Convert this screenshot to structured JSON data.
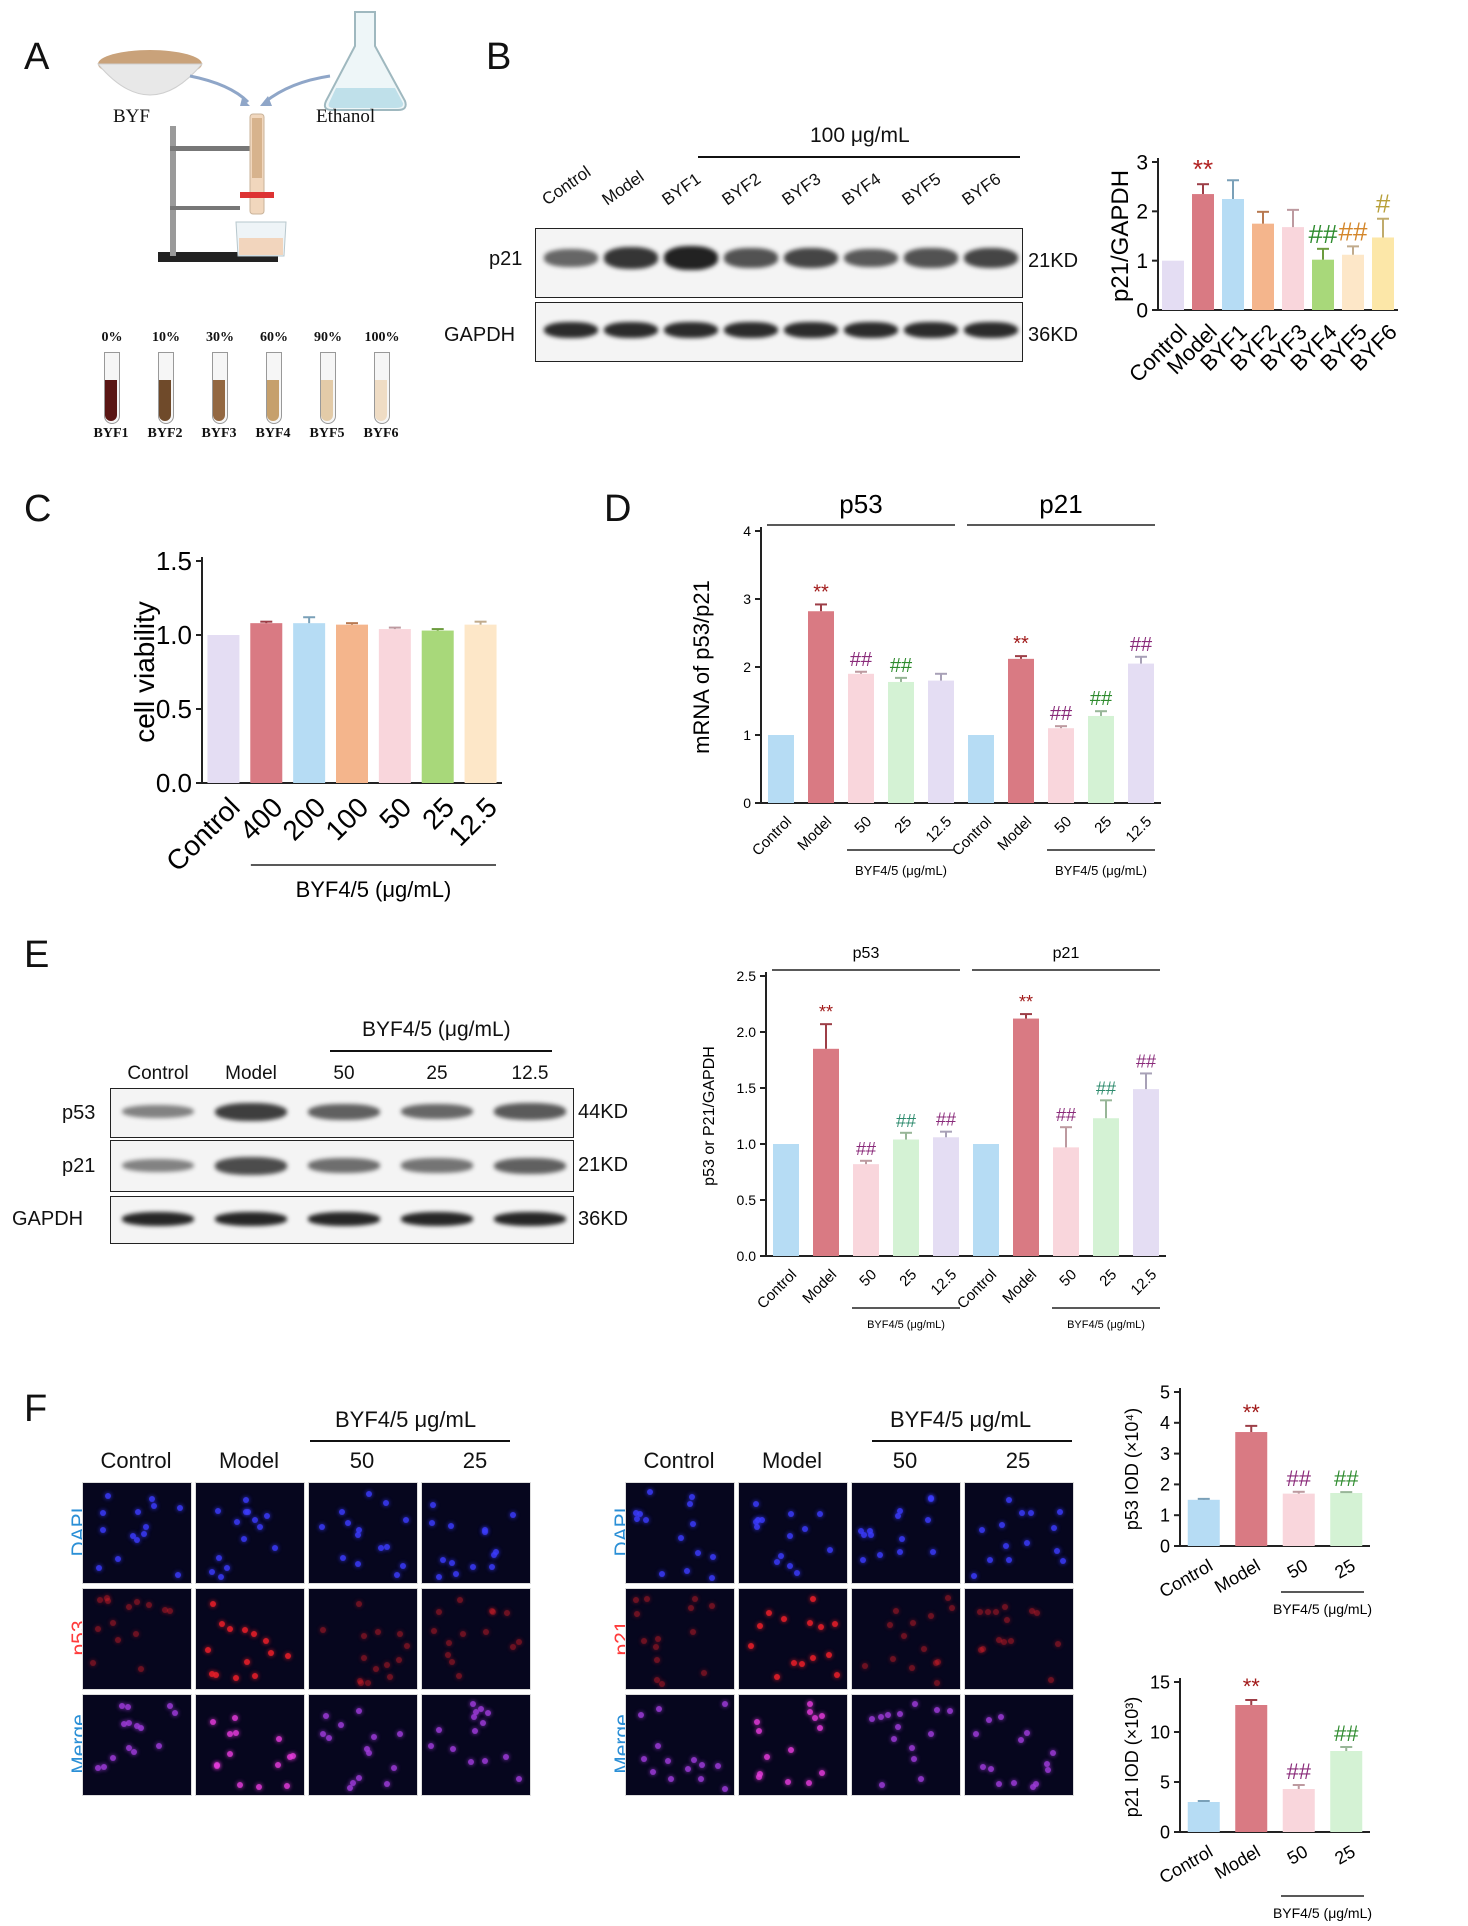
{
  "panels": {
    "a": "A",
    "b": "B",
    "c": "C",
    "d": "D",
    "e": "E",
    "f": "F"
  },
  "panelA": {
    "source_label": "BYF",
    "solvent_label": "Ethanol",
    "fractions": [
      {
        "pct": "0%",
        "name": "BYF1",
        "color": "#5a1614"
      },
      {
        "pct": "10%",
        "name": "BYF2",
        "color": "#6f4a2a"
      },
      {
        "pct": "30%",
        "name": "BYF3",
        "color": "#936842"
      },
      {
        "pct": "60%",
        "name": "BYF4",
        "color": "#c6a06c"
      },
      {
        "pct": "90%",
        "name": "BYF5",
        "color": "#e3cba8"
      },
      {
        "pct": "100%",
        "name": "BYF6",
        "color": "#efdcc4"
      }
    ]
  },
  "panelB": {
    "dose_label": "100 μg/mL",
    "lanes": [
      "Control",
      "Model",
      "BYF1",
      "BYF2",
      "BYF3",
      "BYF4",
      "BYF5",
      "BYF6"
    ],
    "rows": [
      {
        "protein": "p21",
        "kd": "21KD"
      },
      {
        "protein": "GAPDH",
        "kd": "36KD"
      }
    ]
  },
  "panelE": {
    "dose_label": "BYF4/5 (μg/mL)",
    "lanes": [
      "Control",
      "Model",
      "50",
      "25",
      "12.5"
    ],
    "rows": [
      {
        "protein": "p53",
        "kd": "44KD"
      },
      {
        "protein": "p21",
        "kd": "21KD"
      },
      {
        "protein": "GAPDH",
        "kd": "36KD"
      }
    ]
  },
  "panelF": {
    "dose_label": "BYF4/5 μg/mL",
    "columns": [
      "Control",
      "Model",
      "50",
      "25"
    ],
    "left_rows": [
      "DAPI",
      "p53",
      "Merge"
    ],
    "right_rows": [
      "DAPI",
      "p21",
      "Merge"
    ]
  },
  "chart_data": [
    {
      "id": "B",
      "type": "bar",
      "ylabel": "p21/GAPDH",
      "ylim": [
        0,
        3
      ],
      "yticks": [
        "0",
        "1",
        "2",
        "3"
      ],
      "categories": [
        "Control",
        "Model",
        "BYF1",
        "BYF2",
        "BYF3",
        "BYF4",
        "BYF5",
        "BYF6"
      ],
      "values": [
        1.0,
        2.35,
        2.25,
        1.75,
        1.68,
        1.02,
        1.12,
        1.47
      ],
      "errors": [
        0,
        0.2,
        0.38,
        0.24,
        0.35,
        0.22,
        0.17,
        0.38
      ],
      "colors": [
        "#e4ddf3",
        "#d97a83",
        "#b6dcf4",
        "#f4b58c",
        "#f9d6dc",
        "#a8d87a",
        "#fde7c8",
        "#fce7a8"
      ],
      "annotations": [
        "",
        "**",
        "",
        "",
        "",
        "##",
        "##",
        "#"
      ],
      "annotation_colors": [
        "",
        "#b22222",
        "",
        "",
        "",
        "#2e8b2e",
        "#d4862a",
        "#b8a03a"
      ]
    },
    {
      "id": "C",
      "type": "bar",
      "ylabel": "cell viability",
      "ylim": [
        0,
        1.5
      ],
      "yticks": [
        "0.0",
        "0.5",
        "1.0",
        "1.5"
      ],
      "categories": [
        "Control",
        "400",
        "200",
        "100",
        "50",
        "25",
        "12.5"
      ],
      "values": [
        1.0,
        1.08,
        1.08,
        1.07,
        1.04,
        1.03,
        1.07
      ],
      "errors": [
        0,
        0.01,
        0.04,
        0.01,
        0.01,
        0.01,
        0.02
      ],
      "colors": [
        "#e4ddf3",
        "#d97a83",
        "#b6dcf4",
        "#f4b58c",
        "#f9d6dc",
        "#a8d87a",
        "#fde7c8"
      ],
      "group_label": "BYF4/5 (μg/mL)"
    },
    {
      "id": "D",
      "type": "bar",
      "ylabel": "mRNA of p53/p21",
      "ylim": [
        0,
        4
      ],
      "yticks": [
        "0",
        "1",
        "2",
        "3",
        "4"
      ],
      "groups": [
        "p53",
        "p21"
      ],
      "categories": [
        "Control",
        "Model",
        "50",
        "25",
        "12.5",
        "Control",
        "Model",
        "50",
        "25",
        "12.5"
      ],
      "values": [
        1.0,
        2.82,
        1.9,
        1.78,
        1.8,
        1.0,
        2.12,
        1.1,
        1.28,
        2.05
      ],
      "errors": [
        0,
        0.1,
        0.03,
        0.06,
        0.1,
        0,
        0.04,
        0.03,
        0.07,
        0.1
      ],
      "colors": [
        "#b6dcf4",
        "#d97a83",
        "#f9d6dc",
        "#d4f2d4",
        "#e4ddf3",
        "#b6dcf4",
        "#d97a83",
        "#f9d6dc",
        "#d4f2d4",
        "#e4ddf3"
      ],
      "annotations": [
        "",
        "**",
        "##",
        "##",
        "",
        "",
        "**",
        "##",
        "##",
        "##"
      ],
      "annotation_colors": [
        "",
        "#a11a1a",
        "#8a2b7a",
        "#2e8b2e",
        "",
        "",
        "#a11a1a",
        "#8a2b7a",
        "#2e8b2e",
        "#8a2b7a"
      ],
      "group_label": "BYF4/5 (μg/mL)"
    },
    {
      "id": "E",
      "type": "bar",
      "ylabel": "p53 or P21/GAPDH",
      "ylim": [
        0,
        2.5
      ],
      "yticks": [
        "0.0",
        "0.5",
        "1.0",
        "1.5",
        "2.0",
        "2.5"
      ],
      "groups": [
        "p53",
        "p21"
      ],
      "categories": [
        "Control",
        "Model",
        "50",
        "25",
        "12.5",
        "Control",
        "Model",
        "50",
        "25",
        "12.5"
      ],
      "values": [
        1.0,
        1.85,
        0.82,
        1.04,
        1.06,
        1.0,
        2.12,
        0.97,
        1.23,
        1.49
      ],
      "errors": [
        0,
        0.22,
        0.03,
        0.06,
        0.05,
        0,
        0.04,
        0.18,
        0.16,
        0.14
      ],
      "colors": [
        "#b6dcf4",
        "#d97a83",
        "#f9d6dc",
        "#d4f2d4",
        "#e4ddf3",
        "#b6dcf4",
        "#d97a83",
        "#f9d6dc",
        "#d4f2d4",
        "#e4ddf3"
      ],
      "annotations": [
        "",
        "**",
        "##",
        "##",
        "##",
        "",
        "**",
        "##",
        "##",
        "##"
      ],
      "annotation_colors": [
        "",
        "#a11a1a",
        "#8a2b7a",
        "#2e8b6e",
        "#8a2b7a",
        "",
        "#a11a1a",
        "#8a2b7a",
        "#2e8b6e",
        "#8a2b7a"
      ],
      "group_label": "BYF4/5 (μg/mL)"
    },
    {
      "id": "F1",
      "type": "bar",
      "ylabel": "p53 IOD (×10⁴)",
      "ylim": [
        0,
        5
      ],
      "yticks": [
        "0",
        "1",
        "2",
        "3",
        "4",
        "5"
      ],
      "categories": [
        "Control",
        "Model",
        "50",
        "25"
      ],
      "values": [
        1.5,
        3.7,
        1.7,
        1.72
      ],
      "errors": [
        0.03,
        0.2,
        0.06,
        0.03
      ],
      "colors": [
        "#b6dcf4",
        "#d97a83",
        "#f9d6dc",
        "#d4f2d4"
      ],
      "annotations": [
        "",
        "**",
        "##",
        "##"
      ],
      "annotation_colors": [
        "",
        "#a11a1a",
        "#8a2b7a",
        "#2e8b2e"
      ],
      "group_label": "BYF4/5 (μg/mL)"
    },
    {
      "id": "F2",
      "type": "bar",
      "ylabel": "p21 IOD (×10³)",
      "ylim": [
        0,
        15
      ],
      "yticks": [
        "0",
        "5",
        "10",
        "15"
      ],
      "categories": [
        "Control",
        "Model",
        "50",
        "25"
      ],
      "values": [
        3.0,
        12.7,
        4.3,
        8.1
      ],
      "errors": [
        0.1,
        0.5,
        0.4,
        0.4
      ],
      "colors": [
        "#b6dcf4",
        "#d97a83",
        "#f9d6dc",
        "#d4f2d4"
      ],
      "annotations": [
        "",
        "**",
        "##",
        "##"
      ],
      "annotation_colors": [
        "",
        "#a11a1a",
        "#8a2b7a",
        "#2e8b2e"
      ],
      "group_label": "BYF4/5 (μg/mL)"
    }
  ]
}
